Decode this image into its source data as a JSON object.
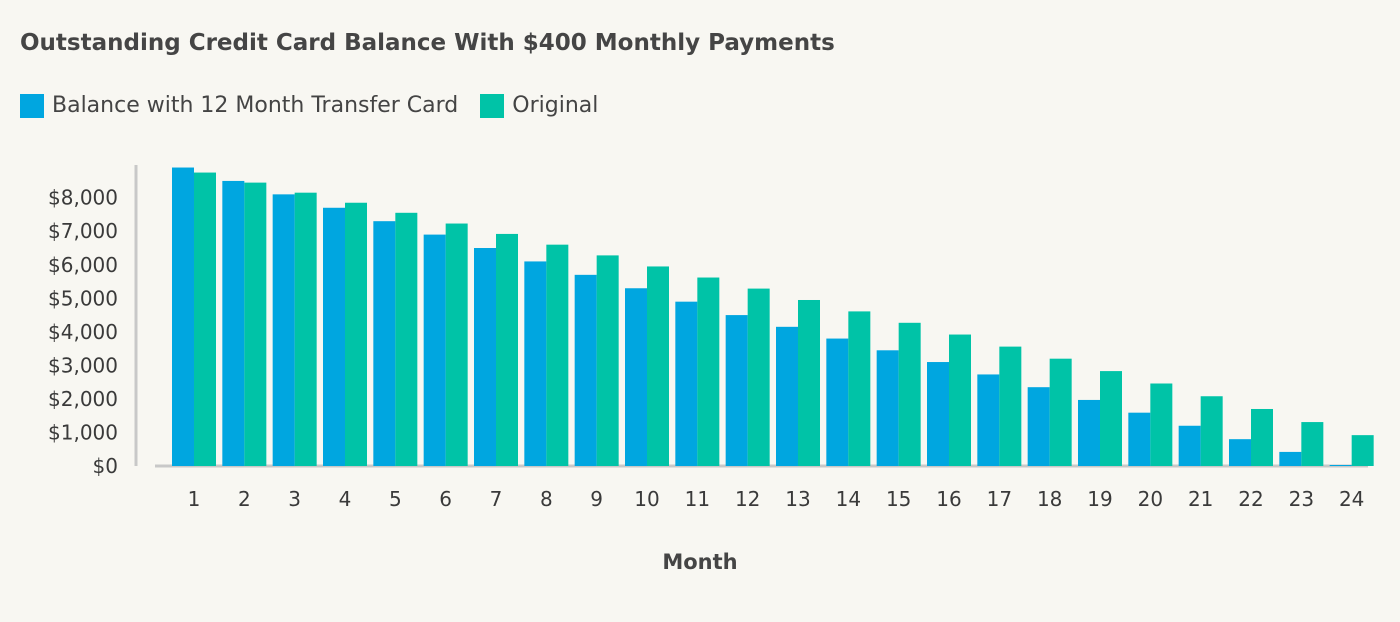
{
  "chart_data": {
    "type": "bar",
    "title": "Outstanding Credit Card Balance With $400 Monthly Payments",
    "xlabel": "Month",
    "ylabel": "",
    "categories": [
      "1",
      "2",
      "3",
      "4",
      "5",
      "6",
      "7",
      "8",
      "9",
      "10",
      "11",
      "12",
      "13",
      "14",
      "15",
      "16",
      "17",
      "18",
      "19",
      "20",
      "21",
      "22",
      "23",
      "24"
    ],
    "series": [
      {
        "name": "Balance with 12 Month Transfer Card",
        "color": "#00a6e0",
        "values": [
          8900,
          8500,
          8100,
          7700,
          7300,
          6900,
          6500,
          6100,
          5700,
          5300,
          4900,
          4500,
          4150,
          3800,
          3450,
          3100,
          2730,
          2350,
          1970,
          1590,
          1200,
          800,
          420,
          30
        ]
      },
      {
        "name": "Original",
        "color": "#00c3a7",
        "values": [
          8750,
          8450,
          8150,
          7850,
          7550,
          7230,
          6920,
          6600,
          6280,
          5950,
          5620,
          5290,
          4950,
          4610,
          4270,
          3920,
          3560,
          3200,
          2830,
          2460,
          2080,
          1700,
          1310,
          920
        ]
      }
    ],
    "ylim": [
      0,
      9000
    ],
    "yticks": [
      0,
      1000,
      2000,
      3000,
      4000,
      5000,
      6000,
      7000,
      8000
    ],
    "ytick_labels": [
      "$0",
      "$1,000",
      "$2,000",
      "$3,000",
      "$4,000",
      "$5,000",
      "$6,000",
      "$7,000",
      "$8,000"
    ],
    "grid": false,
    "legend_position": "top-left"
  }
}
